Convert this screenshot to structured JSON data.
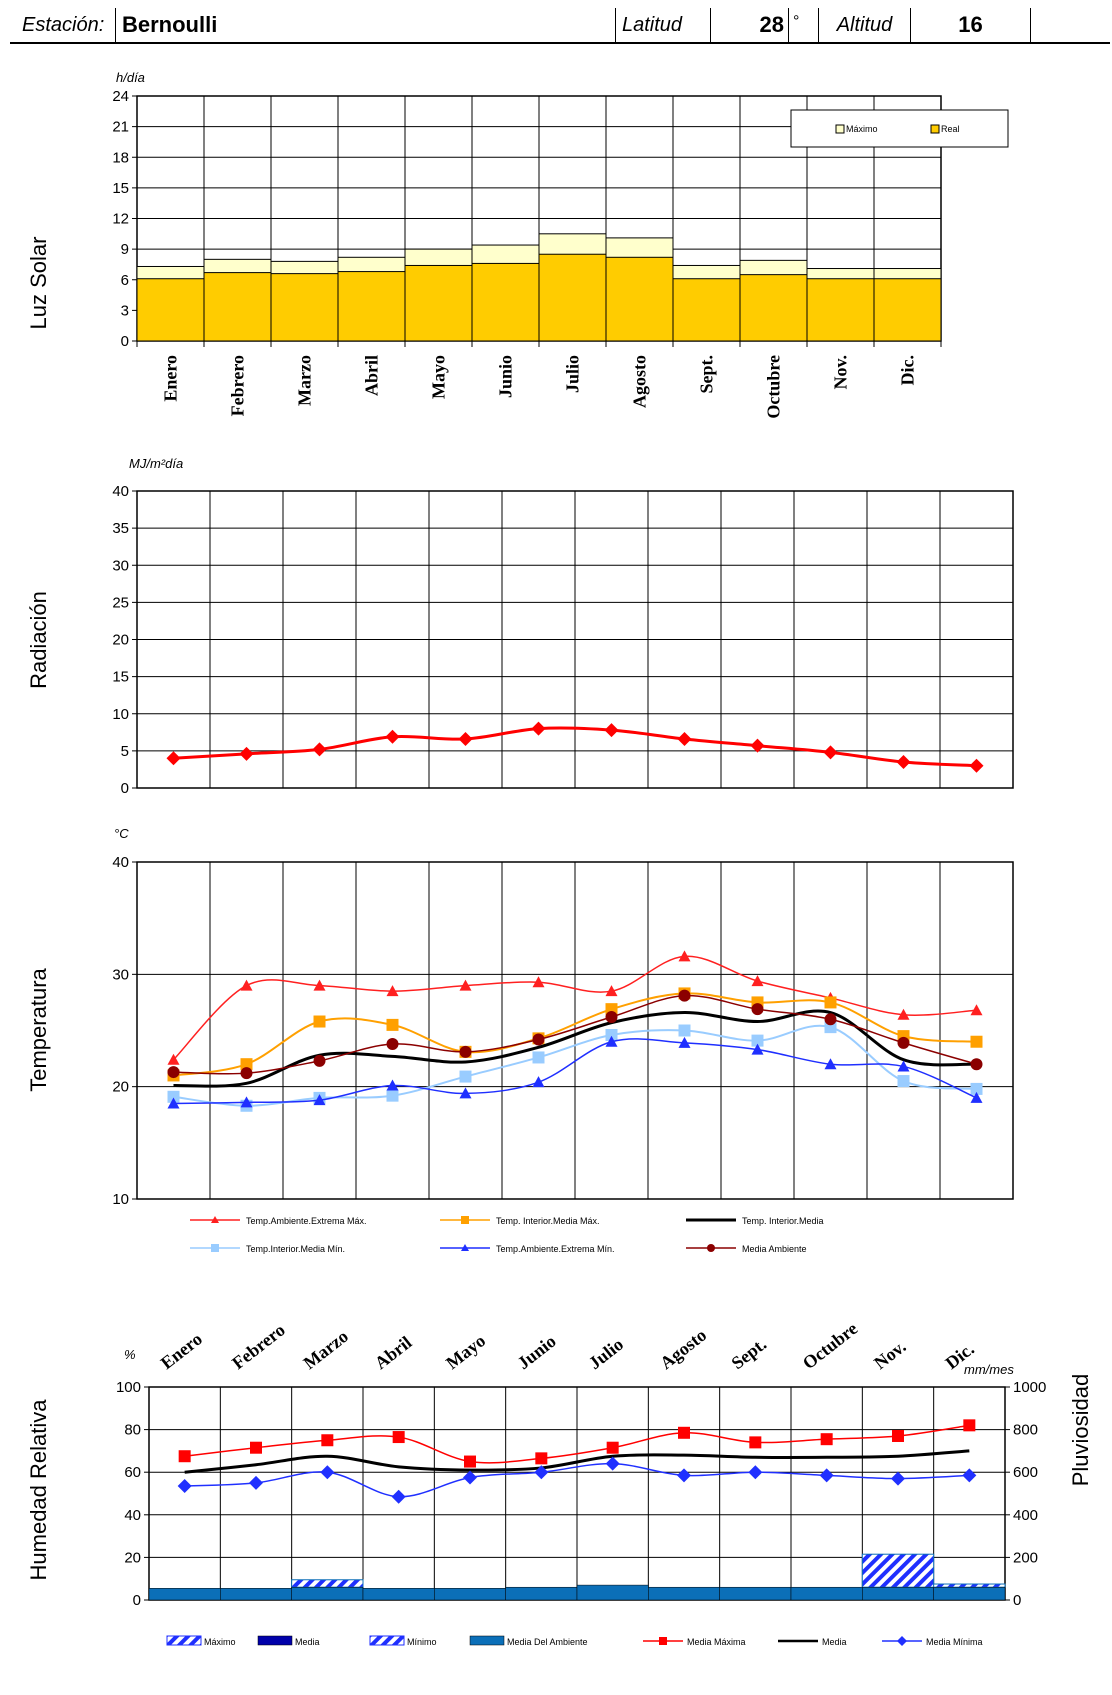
{
  "header": {
    "station_label": "Estación:",
    "station_name": "Bernoulli",
    "lat_label": "Latitud",
    "lat_value": "28",
    "deg_symbol": "°",
    "alt_label": "Altitud",
    "alt_value": "16"
  },
  "months": [
    "Enero",
    "Febrero",
    "Marzo",
    "Abril",
    "Mayo",
    "Junio",
    "Julio",
    "Agosto",
    "Sept.",
    "Octubre",
    "Nov.",
    "Dic."
  ],
  "colors": {
    "sun_max": "#ffffcc",
    "sun_real": "#ffcc00",
    "radiation": "#ff0000",
    "t_ext_max": "#ff2020",
    "t_int_med_max": "#ffa000",
    "t_int_media": "#000000",
    "t_int_med_min": "#99ccff",
    "t_ext_min": "#1f2fff",
    "t_media_amb": "#8b0000",
    "rain": "#0b6fb8",
    "hum_max": "#ff0000",
    "hum_media": "#000000",
    "hum_min": "#2030ff"
  },
  "chart_data": [
    {
      "id": "luz_solar",
      "type": "bar",
      "side_label": "Luz Solar",
      "unit_label": "h/día",
      "ylim": [
        0,
        24
      ],
      "yticks": [
        "0",
        "3",
        "6",
        "9",
        "12",
        "15",
        "18",
        "21",
        "24"
      ],
      "categories": [
        "Enero",
        "Febrero",
        "Marzo",
        "Abril",
        "Mayo",
        "Junio",
        "Julio",
        "Agosto",
        "Sept.",
        "Octubre",
        "Nov.",
        "Dic."
      ],
      "legend": [
        "Máximo",
        "Real"
      ],
      "series": [
        {
          "name": "Máximo",
          "values": [
            7.3,
            8.0,
            7.8,
            8.2,
            9.0,
            9.4,
            10.5,
            10.1,
            7.4,
            7.9,
            7.1,
            7.1
          ]
        },
        {
          "name": "Real",
          "values": [
            6.1,
            6.7,
            6.6,
            6.8,
            7.4,
            7.6,
            8.5,
            8.2,
            6.1,
            6.5,
            6.1,
            6.1
          ]
        }
      ]
    },
    {
      "id": "radiacion",
      "type": "line",
      "side_label": "Radiación",
      "unit_label": "MJ/m²día",
      "ylim": [
        0,
        40
      ],
      "yticks": [
        "0",
        "5",
        "10",
        "15",
        "20",
        "25",
        "30",
        "35",
        "40"
      ],
      "categories": [
        "Enero",
        "Febrero",
        "Marzo",
        "Abril",
        "Mayo",
        "Junio",
        "Julio",
        "Agosto",
        "Sept.",
        "Octubre",
        "Nov.",
        "Dic."
      ],
      "series": [
        {
          "values": [
            4.0,
            4.6,
            5.2,
            6.9,
            6.6,
            8.0,
            7.8,
            6.6,
            5.7,
            4.8,
            3.5,
            3.0
          ]
        }
      ]
    },
    {
      "id": "temperatura",
      "type": "line",
      "side_label": "Temperatura",
      "unit_label": "°C",
      "ylim": [
        10,
        40
      ],
      "yticks": [
        "10",
        "20",
        "30",
        "40"
      ],
      "categories": [
        "Enero",
        "Febrero",
        "Marzo",
        "Abril",
        "Mayo",
        "Junio",
        "Julio",
        "Agosto",
        "Sept.",
        "Octubre",
        "Nov.",
        "Dic."
      ],
      "series": [
        {
          "name": "Temp.Ambiente.Extrema Máx.",
          "values": [
            22.4,
            29.0,
            29.0,
            28.5,
            29.0,
            29.3,
            28.5,
            31.6,
            29.4,
            27.9,
            26.4,
            26.8
          ]
        },
        {
          "name": "Temp. Interior.Media Máx.",
          "values": [
            21.0,
            22.0,
            25.8,
            25.5,
            23.1,
            24.3,
            26.9,
            28.3,
            27.5,
            27.5,
            24.5,
            24.0
          ]
        },
        {
          "name": "Temp. Interior.Media",
          "values": [
            20.1,
            20.3,
            22.8,
            22.7,
            22.2,
            23.5,
            25.7,
            26.6,
            25.8,
            26.6,
            22.4,
            22.0
          ]
        },
        {
          "name": "Temp.Interior.Media Mín.",
          "values": [
            19.1,
            18.3,
            19.0,
            19.2,
            20.9,
            22.6,
            24.6,
            25.0,
            24.1,
            25.3,
            20.5,
            19.8
          ]
        },
        {
          "name": "Temp.Ambiente.Extrema Mín.",
          "values": [
            18.5,
            18.6,
            18.8,
            20.1,
            19.4,
            20.4,
            24.0,
            23.9,
            23.3,
            22.0,
            21.8,
            19.0
          ]
        },
        {
          "name": "Media Ambiente",
          "values": [
            21.3,
            21.2,
            22.3,
            23.8,
            23.1,
            24.2,
            26.2,
            28.1,
            26.9,
            26.0,
            23.9,
            22.0
          ]
        }
      ]
    },
    {
      "id": "humedad_pluviosidad",
      "type": "line",
      "side_label": "Humedad Relativa",
      "side_label_right": "Pluviosidad",
      "unit_label": "%",
      "unit_label_right": "mm/mes",
      "ylim": [
        0,
        100
      ],
      "ylim_right": [
        0,
        1000
      ],
      "yticks": [
        "0",
        "20",
        "40",
        "60",
        "80",
        "100"
      ],
      "yticks_right": [
        "0",
        "200",
        "400",
        "600",
        "800",
        "1000"
      ],
      "categories": [
        "Enero",
        "Febrero",
        "Marzo",
        "Abril",
        "Mayo",
        "Junio",
        "Julio",
        "Agosto",
        "Sept.",
        "Octubre",
        "Nov.",
        "Dic."
      ],
      "legend": [
        "Máximo",
        "Media",
        "Mínimo",
        "Media Del Ambiente",
        "Media Máxima",
        "Media",
        "Media Mínima"
      ],
      "rain": {
        "media": [
          55,
          55,
          60,
          55,
          55,
          60,
          70,
          60,
          60,
          60,
          60,
          60
        ],
        "maximo": [
          55,
          55,
          95,
          55,
          55,
          60,
          70,
          60,
          60,
          60,
          215,
          75
        ]
      },
      "series": [
        {
          "name": "Media Máxima",
          "values": [
            67.5,
            71.5,
            75.0,
            76.5,
            65.0,
            66.5,
            71.5,
            78.5,
            74.0,
            75.5,
            77.0,
            82.0
          ]
        },
        {
          "name": "Media",
          "values": [
            60.0,
            63.5,
            67.5,
            62.5,
            61.0,
            62.0,
            67.5,
            68.0,
            67.0,
            67.0,
            67.5,
            70.0
          ]
        },
        {
          "name": "Media Mínima",
          "values": [
            53.5,
            55.0,
            60.0,
            48.5,
            57.5,
            60.0,
            64.0,
            58.5,
            60.0,
            58.5,
            57.0,
            58.5
          ]
        }
      ]
    }
  ]
}
